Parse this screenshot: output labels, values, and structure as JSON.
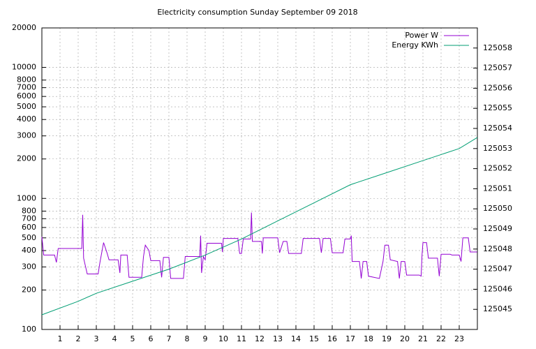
{
  "chart_data": {
    "type": "line",
    "title": "Electricity consumption Sunday September 09 2018",
    "xlim": [
      0,
      24
    ],
    "xticks": [
      1,
      2,
      3,
      4,
      5,
      6,
      7,
      8,
      9,
      10,
      11,
      12,
      13,
      14,
      15,
      16,
      17,
      18,
      19,
      20,
      21,
      22,
      23
    ],
    "ylim": [
      100,
      20000
    ],
    "log_y": true,
    "yticks": [
      100,
      200,
      300,
      400,
      500,
      600,
      700,
      800,
      1000,
      2000,
      3000,
      4000,
      5000,
      6000,
      7000,
      8000,
      10000,
      20000
    ],
    "y2lim": [
      125044,
      125059
    ],
    "y2ticks": [
      125045,
      125046,
      125047,
      125048,
      125049,
      125050,
      125051,
      125052,
      125053,
      125054,
      125055,
      125056,
      125057,
      125058
    ],
    "grid": true,
    "legend": "top-right",
    "series": [
      {
        "name": "Power W",
        "color": "#9400d3",
        "x": [
          0,
          0.1,
          0.7,
          0.8,
          0.9,
          2.2,
          2.25,
          2.3,
          2.5,
          3.1,
          3.2,
          3.4,
          3.6,
          3.7,
          4.2,
          4.3,
          4.35,
          4.7,
          4.8,
          5.5,
          5.6,
          5.7,
          5.9,
          6.0,
          6.5,
          6.6,
          6.7,
          7.0,
          7.1,
          7.8,
          7.9,
          8.7,
          8.75,
          8.8,
          8.9,
          9.0,
          9.1,
          9.9,
          9.95,
          10.0,
          10.8,
          10.9,
          11.0,
          11.1,
          11.5,
          11.55,
          11.6,
          12.1,
          12.15,
          12.2,
          13.0,
          13.1,
          13.3,
          13.5,
          13.6,
          14.3,
          14.4,
          15.3,
          15.4,
          15.5,
          15.9,
          16.0,
          16.6,
          16.7,
          17.0,
          17.05,
          17.1,
          17.5,
          17.6,
          17.7,
          17.9,
          18.0,
          18.6,
          18.8,
          18.9,
          19.1,
          19.2,
          19.6,
          19.7,
          19.8,
          20.0,
          20.1,
          20.8,
          20.9,
          20.95,
          21.0,
          21.2,
          21.3,
          21.8,
          21.9,
          22.0,
          22.5,
          22.6,
          23.0,
          23.1,
          23.2,
          23.5,
          23.6,
          23.99
        ],
        "values": [
          510,
          370,
          370,
          325,
          415,
          415,
          750,
          350,
          265,
          265,
          325,
          460,
          380,
          340,
          340,
          270,
          370,
          370,
          250,
          250,
          360,
          440,
          400,
          335,
          335,
          250,
          355,
          355,
          245,
          245,
          360,
          360,
          520,
          270,
          360,
          340,
          455,
          455,
          390,
          495,
          495,
          380,
          380,
          490,
          490,
          780,
          470,
          470,
          380,
          500,
          500,
          385,
          470,
          470,
          380,
          380,
          495,
          495,
          385,
          495,
          495,
          385,
          385,
          490,
          490,
          520,
          330,
          330,
          245,
          330,
          330,
          255,
          245,
          330,
          440,
          440,
          340,
          330,
          245,
          330,
          330,
          260,
          260,
          255,
          370,
          460,
          460,
          350,
          350,
          255,
          375,
          375,
          370,
          370,
          330,
          500,
          500,
          390,
          390
        ]
      },
      {
        "name": "Energy KWh",
        "color": "#009e73",
        "axis": "y2",
        "x": [
          0,
          2,
          3,
          5,
          7,
          9,
          11,
          13,
          15,
          17,
          19,
          21,
          23,
          24
        ],
        "values": [
          125044.73,
          125045.4,
          125045.8,
          125046.4,
          125047.0,
          125047.7,
          125048.5,
          125049.4,
          125050.3,
          125051.2,
          125051.8,
          125052.4,
          125053.0,
          125053.55
        ]
      }
    ]
  }
}
